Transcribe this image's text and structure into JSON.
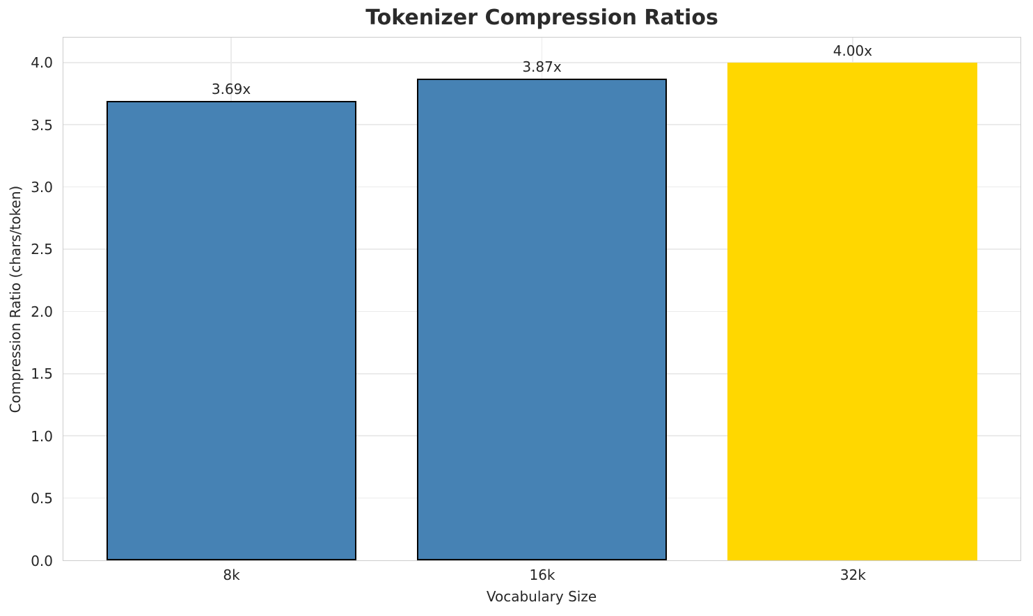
{
  "chart_data": {
    "type": "bar",
    "title": "Tokenizer Compression Ratios",
    "xlabel": "Vocabulary Size",
    "ylabel": "Compression Ratio (chars/token)",
    "categories": [
      "8k",
      "16k",
      "32k"
    ],
    "values": [
      3.69,
      3.87,
      4.0
    ],
    "bar_labels": [
      "3.69x",
      "3.87x",
      "4.00x"
    ],
    "bar_colors": [
      "#4682B4",
      "#4682B4",
      "#FFD700"
    ],
    "bar_edge_colors": [
      "#000000",
      "#000000",
      "none"
    ],
    "ylim": [
      0,
      4.2
    ],
    "yticks": [
      0.0,
      0.5,
      1.0,
      1.5,
      2.0,
      2.5,
      3.0,
      3.5,
      4.0
    ],
    "grid": true,
    "legend": false
  },
  "colors": {
    "primary_bar": "#4682B4",
    "highlight_bar": "#FFD700",
    "bar_edge": "#000000",
    "grid": "#ebebeb",
    "spine": "#cccccc",
    "text": "#262626",
    "title": "#2b2b2b"
  }
}
